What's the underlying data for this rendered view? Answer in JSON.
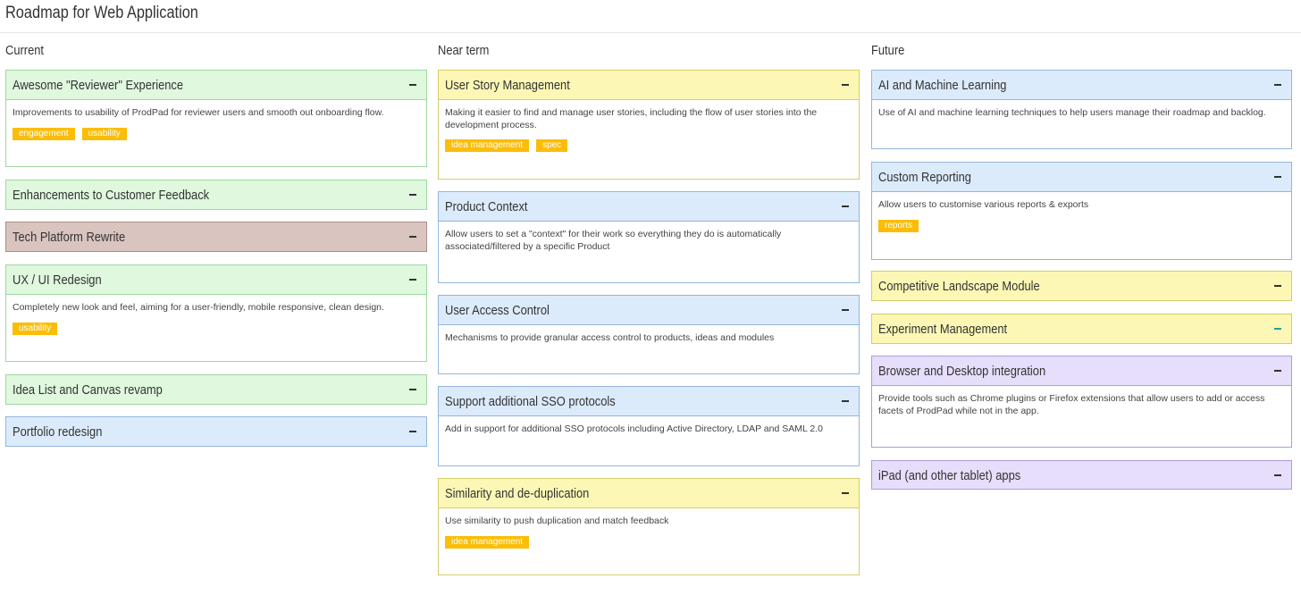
{
  "page": {
    "title": "Roadmap for Web Application"
  },
  "columns": [
    {
      "heading": "Current",
      "cards": [
        {
          "title": "Awesome \"Reviewer\" Experience",
          "color": "green",
          "expanded": true,
          "description": "Improvements to usability of ProdPad for reviewer users and smooth out onboarding flow.",
          "tags": [
            "engagement",
            "usability"
          ]
        },
        {
          "title": "Enhancements to Customer Feedback",
          "color": "green",
          "expanded": false
        },
        {
          "title": "Tech Platform Rewrite",
          "color": "brown",
          "expanded": false
        },
        {
          "title": "UX / UI Redesign",
          "color": "green",
          "expanded": true,
          "description": "Completely new look and feel, aiming for a user-friendly, mobile responsive, clean design.",
          "tags": [
            "usability"
          ]
        },
        {
          "title": "Idea List and Canvas revamp",
          "color": "green",
          "expanded": false
        },
        {
          "title": "Portfolio redesign",
          "color": "blue",
          "expanded": false
        }
      ]
    },
    {
      "heading": "Near term",
      "cards": [
        {
          "title": "User Story Management",
          "color": "yellow",
          "expanded": true,
          "description": "Making it easier to find and manage user stories, including the flow of user stories into the development process.",
          "tags": [
            "idea management",
            "spec"
          ]
        },
        {
          "title": "Product Context",
          "color": "blue",
          "expanded": true,
          "description": "Allow users to set a \"context\" for their work so everything they do is automatically associated/filtered by a specific Product",
          "tags": []
        },
        {
          "title": "User Access Control",
          "color": "blue",
          "expanded": true,
          "description": "Mechanisms to provide granular access control to products, ideas and modules",
          "tags": []
        },
        {
          "title": "Support additional SSO protocols",
          "color": "blue",
          "expanded": true,
          "description": "Add in support for additional SSO protocols including Active Directory, LDAP and SAML 2.0",
          "tags": []
        },
        {
          "title": "Similarity and de-duplication",
          "color": "yellow",
          "expanded": true,
          "description": "Use similarity to push duplication and match feedback",
          "tags": [
            "idea management"
          ]
        }
      ]
    },
    {
      "heading": "Future",
      "cards": [
        {
          "title": "AI and Machine Learning",
          "color": "blue",
          "expanded": true,
          "description": "Use of AI and machine learning techniques to help users manage their roadmap and backlog.",
          "tags": []
        },
        {
          "title": "Custom Reporting",
          "color": "blue",
          "expanded": true,
          "description": "Allow users to customise various reports & exports",
          "tags": [
            "reports"
          ]
        },
        {
          "title": "Competitive Landscape Module",
          "color": "yellow",
          "expanded": false
        },
        {
          "title": "Experiment Management",
          "color": "yellow",
          "expanded": false,
          "icon_color": "#2b9a9a"
        },
        {
          "title": "Browser and Desktop integration",
          "color": "purple",
          "expanded": true,
          "description": "Provide tools such as Chrome plugins or Firefox extensions that allow users to add or access facets of ProdPad while not in the app.",
          "tags": []
        },
        {
          "title": "iPad (and other tablet) apps",
          "color": "purple",
          "expanded": false
        }
      ]
    }
  ]
}
